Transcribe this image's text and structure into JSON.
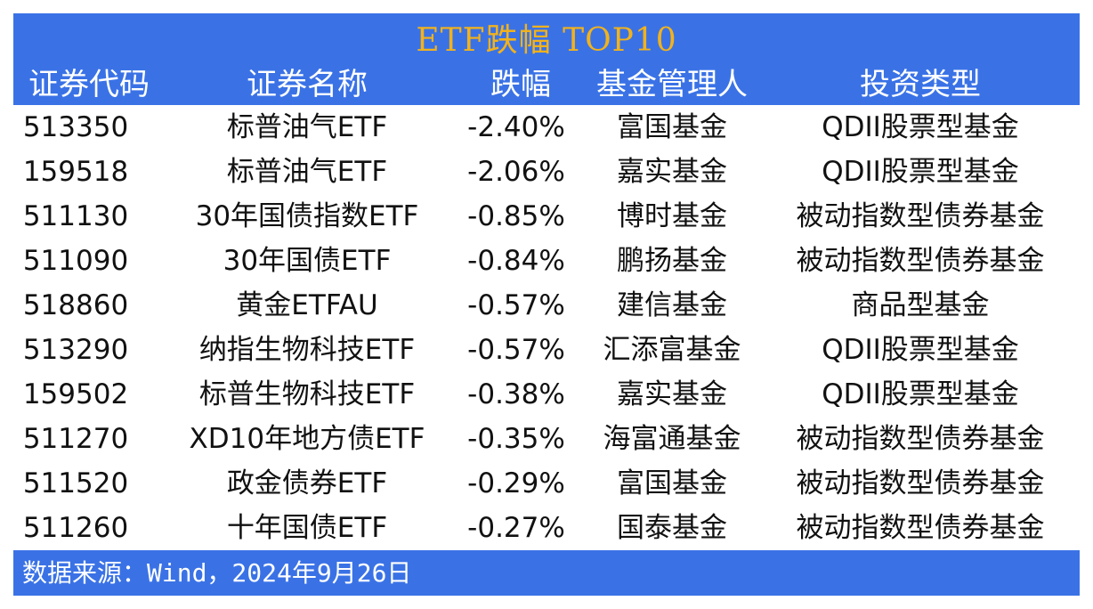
{
  "title": "ETF跌幅 TOP10",
  "columns": [
    "证券代码",
    "证券名称",
    "跌幅",
    "基金管理人",
    "投资类型"
  ],
  "rows": [
    [
      "513350",
      "标普油气ETF",
      "-2.40%",
      "富国基金",
      "QDII股票型基金"
    ],
    [
      "159518",
      "标普油气ETF",
      "-2.06%",
      "嘉实基金",
      "QDII股票型基金"
    ],
    [
      "511130",
      "30年国债指数ETF",
      "-0.85%",
      "博时基金",
      "被动指数型债券基金"
    ],
    [
      "511090",
      "30年国债ETF",
      "-0.84%",
      "鹏扬基金",
      "被动指数型债券基金"
    ],
    [
      "518860",
      "黄金ETFAU",
      "-0.57%",
      "建信基金",
      "商品型基金"
    ],
    [
      "513290",
      "纳指生物科技ETF",
      "-0.57%",
      "汇添富基金",
      "QDII股票型基金"
    ],
    [
      "159502",
      "标普生物科技ETF",
      "-0.38%",
      "嘉实基金",
      "QDII股票型基金"
    ],
    [
      "511270",
      "XD10年地方债ETF",
      "-0.35%",
      "海富通基金",
      "被动指数型债券基金"
    ],
    [
      "511520",
      "政金债券ETF",
      "-0.29%",
      "富国基金",
      "被动指数型债券基金"
    ],
    [
      "511260",
      "十年国债ETF",
      "-0.27%",
      "国泰基金",
      "被动指数型债券基金"
    ]
  ],
  "footer": "数据来源：Wind，2024年9月26日",
  "colors": {
    "header_bg": "#3a72e6",
    "title": "#f2b21b",
    "header_text": "#ffffff",
    "body_text": "#111111"
  }
}
